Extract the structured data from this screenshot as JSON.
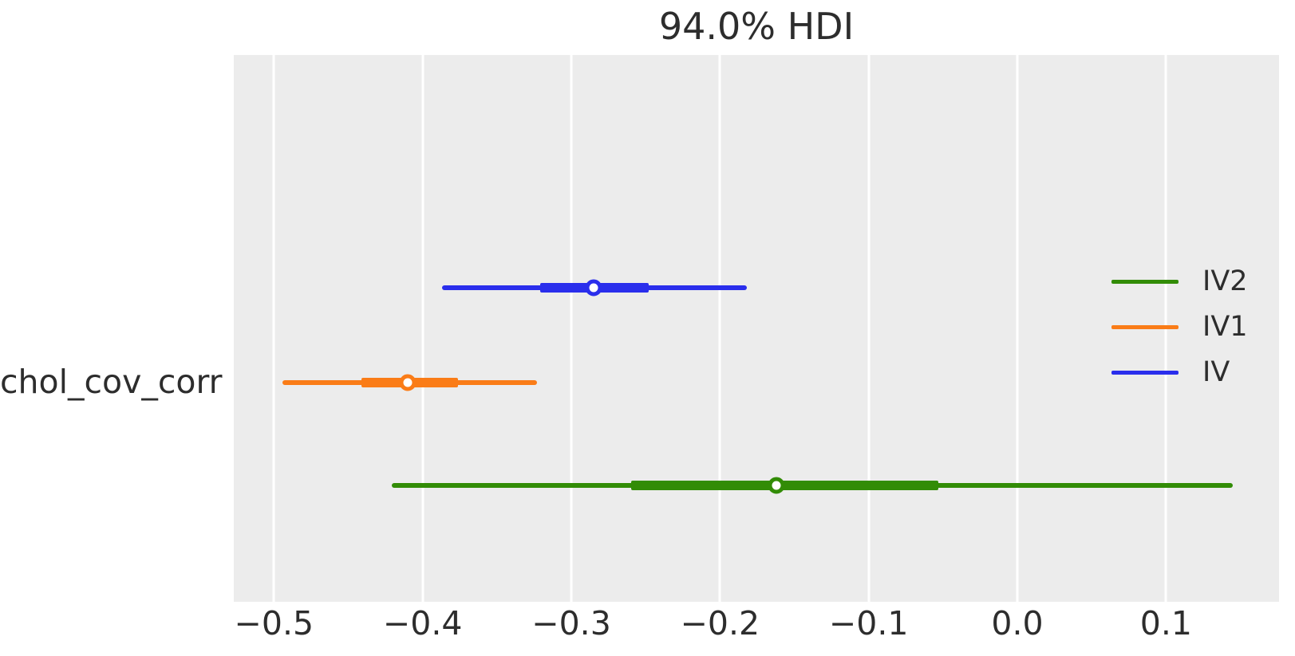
{
  "chart_data": {
    "type": "forest",
    "title": "94.0% HDI",
    "row_label": "chol_cov_corr",
    "xlim": [
      -0.527,
      0.176
    ],
    "plot_bg": "#ececec",
    "grid": "vertical-white-lines",
    "x_ticks": [
      {
        "value": -0.5,
        "label": "−0.5"
      },
      {
        "value": -0.4,
        "label": "−0.4"
      },
      {
        "value": -0.3,
        "label": "−0.3"
      },
      {
        "value": -0.2,
        "label": "−0.2"
      },
      {
        "value": -0.1,
        "label": "−0.1"
      },
      {
        "value": 0.0,
        "label": "0.0"
      },
      {
        "value": 0.1,
        "label": "0.1"
      }
    ],
    "series": [
      {
        "name": "IV",
        "color": "#2a2eec",
        "row_frac": 0.426,
        "hdi": [
          -0.387,
          -0.182
        ],
        "interquartile": [
          -0.321,
          -0.248
        ],
        "median": -0.285
      },
      {
        "name": "IV1",
        "color": "#fa7c17",
        "row_frac": 0.599,
        "hdi": [
          -0.494,
          -0.323
        ],
        "interquartile": [
          -0.441,
          -0.376
        ],
        "median": -0.41
      },
      {
        "name": "IV2",
        "color": "#328c06",
        "row_frac": 0.787,
        "hdi": [
          -0.421,
          0.145
        ],
        "interquartile": [
          -0.26,
          -0.053
        ],
        "median": -0.162
      }
    ],
    "legend": {
      "position": "right",
      "entries": [
        {
          "label": "IV2",
          "color": "#328c06"
        },
        {
          "label": "IV1",
          "color": "#fa7c17"
        },
        {
          "label": "IV",
          "color": "#2a2eec"
        }
      ]
    }
  }
}
